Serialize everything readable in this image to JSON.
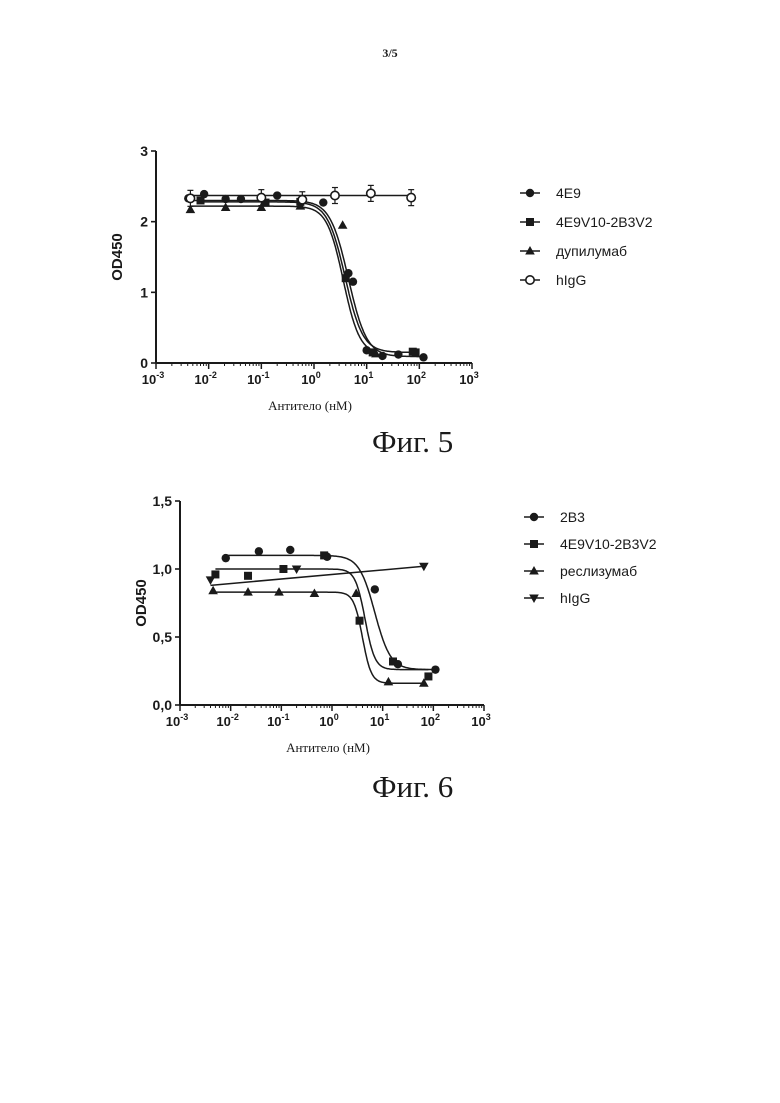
{
  "page": {
    "number": "3/5"
  },
  "chart_data": [
    {
      "type": "line",
      "figure_caption": "Фиг. 5",
      "ylabel": "OD450",
      "xlabel": "Антитело (нМ)",
      "xscale": "log",
      "xlim": [
        0.001,
        1000
      ],
      "ylim": [
        0,
        3
      ],
      "x_tick_values": [
        0.001,
        0.01,
        0.1,
        1,
        10,
        100,
        1000
      ],
      "x_ticks": [
        {
          "base": "10",
          "exp": "-3"
        },
        {
          "base": "10",
          "exp": "-2"
        },
        {
          "base": "10",
          "exp": "-1"
        },
        {
          "base": "10",
          "exp": "0"
        },
        {
          "base": "10",
          "exp": "1"
        },
        {
          "base": "10",
          "exp": "2"
        },
        {
          "base": "10",
          "exp": "3"
        }
      ],
      "y_tick_values": [
        0,
        1,
        2,
        3
      ],
      "y_ticks": [
        "0",
        "1",
        "2",
        "3"
      ],
      "grid": false,
      "legend_position": "right",
      "series": [
        {
          "name": "4E9",
          "marker": "circle",
          "x": [
            0.0041,
            0.0082,
            0.021,
            0.041,
            0.2,
            0.6,
            1.5,
            4.5,
            5.5,
            10,
            20,
            40,
            120
          ],
          "y": [
            2.33,
            2.39,
            2.32,
            2.32,
            2.37,
            2.31,
            2.27,
            1.27,
            1.15,
            0.18,
            0.1,
            0.12,
            0.08
          ],
          "curve": {
            "top": 2.3,
            "bottom": 0.09,
            "ec50": 4.5,
            "hill": 2.5
          }
        },
        {
          "name": "4E9V10-2B3V2",
          "marker": "square",
          "x": [
            0.007,
            0.12,
            0.55,
            4.0,
            13,
            75,
            85
          ],
          "y": [
            2.3,
            2.27,
            2.28,
            1.2,
            0.15,
            0.16,
            0.15
          ],
          "curve": {
            "top": 2.28,
            "bottom": 0.15,
            "ec50": 3.9,
            "hill": 2.6
          }
        },
        {
          "name": "дупилумаб",
          "marker": "triangle",
          "x": [
            0.0045,
            0.021,
            0.1,
            0.55,
            3.5,
            15
          ],
          "y": [
            2.17,
            2.2,
            2.2,
            2.22,
            1.95,
            0.13
          ],
          "curve": {
            "top": 2.22,
            "bottom": 0.12,
            "ec50": 3.6,
            "hill": 2.8
          }
        },
        {
          "name": "hIgG",
          "marker": "circle-open",
          "x": [
            0.0045,
            0.1,
            0.6,
            2.5,
            12,
            70
          ],
          "y": [
            2.33,
            2.34,
            2.31,
            2.37,
            2.4,
            2.34
          ],
          "line_y": 2.37
        }
      ]
    },
    {
      "type": "line",
      "figure_caption": "Фиг. 6",
      "ylabel": "OD450",
      "xlabel": "Антитело (нМ)",
      "xscale": "log",
      "xlim": [
        0.001,
        1000
      ],
      "ylim": [
        0,
        1.5
      ],
      "x_tick_values": [
        0.001,
        0.01,
        0.1,
        1,
        10,
        100,
        1000
      ],
      "x_ticks": [
        {
          "base": "10",
          "exp": "-3"
        },
        {
          "base": "10",
          "exp": "-2"
        },
        {
          "base": "10",
          "exp": "-1"
        },
        {
          "base": "10",
          "exp": "0"
        },
        {
          "base": "10",
          "exp": "1"
        },
        {
          "base": "10",
          "exp": "2"
        },
        {
          "base": "10",
          "exp": "3"
        }
      ],
      "y_tick_values": [
        0,
        0.5,
        1.0,
        1.5
      ],
      "y_ticks": [
        "0,0",
        "0,5",
        "1,0",
        "1,5"
      ],
      "grid": false,
      "legend_position": "right",
      "series": [
        {
          "name": "2B3",
          "marker": "circle",
          "x": [
            0.008,
            0.036,
            0.15,
            0.8,
            7,
            20,
            110
          ],
          "y": [
            1.08,
            1.13,
            1.14,
            1.09,
            0.85,
            0.3,
            0.26
          ],
          "curve": {
            "top": 1.1,
            "bottom": 0.26,
            "ec50": 7,
            "hill": 2.8
          }
        },
        {
          "name": "4E9V10-2B3V2",
          "marker": "square",
          "x": [
            0.005,
            0.022,
            0.11,
            0.7,
            3.5,
            16,
            80
          ],
          "y": [
            0.96,
            0.95,
            1.0,
            1.1,
            0.62,
            0.32,
            0.21
          ],
          "curve": {
            "top": 1.0,
            "bottom": 0.26,
            "ec50": 4.5,
            "hill": 4.5
          }
        },
        {
          "name": "реслизумаб",
          "marker": "triangle",
          "x": [
            0.0045,
            0.022,
            0.09,
            0.45,
            3,
            13,
            65
          ],
          "y": [
            0.84,
            0.83,
            0.83,
            0.82,
            0.82,
            0.17,
            0.16
          ],
          "curve": {
            "top": 0.83,
            "bottom": 0.16,
            "ec50": 4,
            "hill": 5
          }
        },
        {
          "name": "hIgG",
          "marker": "triangle-down",
          "x": [
            0.004,
            0.2,
            65
          ],
          "y": [
            0.92,
            1.0,
            1.02
          ],
          "line_from": [
            0.004,
            0.88
          ],
          "line_to": [
            65,
            1.02
          ]
        }
      ]
    }
  ]
}
